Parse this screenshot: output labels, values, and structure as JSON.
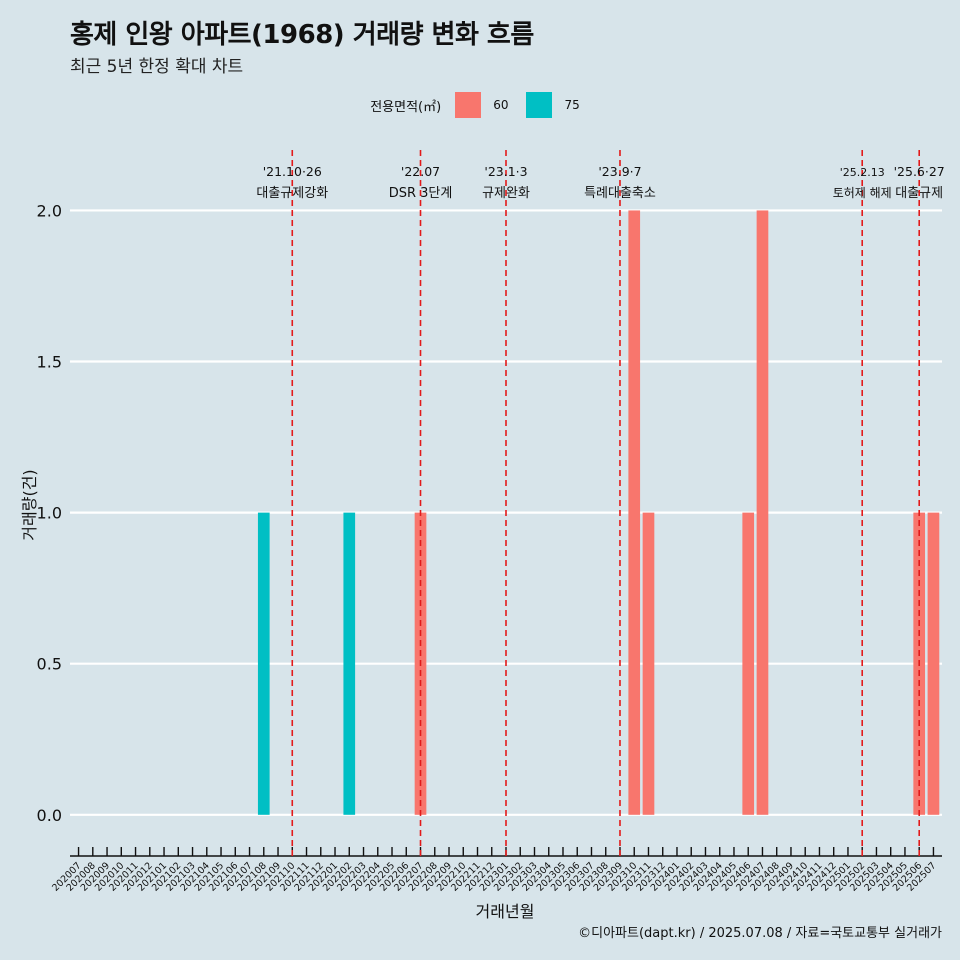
{
  "header": {
    "title": "홍제 인왕 아파트(1968) 거래량 변화 흐름",
    "subtitle": "최근 5년 한정 확대 차트"
  },
  "legend": {
    "title": "전용면적(㎡)",
    "items": [
      {
        "label": "60",
        "color": "#f8766d"
      },
      {
        "label": "75",
        "color": "#00bfc4"
      }
    ]
  },
  "caption": "©디아파트(dapt.kr) / 2025.07.08 / 자료=국토교통부 실거래가",
  "chart_data": {
    "type": "bar",
    "xlabel": "거래년월",
    "ylabel": "거래량(건)",
    "ylim": [
      -0.09,
      2.2
    ],
    "yticks": [
      0.0,
      0.5,
      1.0,
      1.5,
      2.0
    ],
    "ytick_labels": [
      "0.0",
      "0.5",
      "1.0",
      "1.5",
      "2.0"
    ],
    "grid": true,
    "legend_position": "top",
    "categories": [
      "202007",
      "202008",
      "202009",
      "202010",
      "202011",
      "202012",
      "202101",
      "202102",
      "202103",
      "202104",
      "202105",
      "202106",
      "202107",
      "202108",
      "202109",
      "202110",
      "202111",
      "202112",
      "202201",
      "202202",
      "202203",
      "202204",
      "202205",
      "202206",
      "202207",
      "202208",
      "202209",
      "202210",
      "202211",
      "202212",
      "202301",
      "202302",
      "202303",
      "202304",
      "202305",
      "202306",
      "202307",
      "202308",
      "202309",
      "202310",
      "202311",
      "202312",
      "202401",
      "202402",
      "202403",
      "202404",
      "202405",
      "202406",
      "202407",
      "202408",
      "202409",
      "202410",
      "202411",
      "202412",
      "202501",
      "202502",
      "202503",
      "202504",
      "202505",
      "202506",
      "202507"
    ],
    "series": [
      {
        "name": "60",
        "color": "#f8766d",
        "values": [
          0,
          0,
          0,
          0,
          0,
          0,
          0,
          0,
          0,
          0,
          0,
          0,
          0,
          0,
          0,
          0,
          0,
          0,
          0,
          0,
          0,
          0,
          0,
          0,
          1,
          0,
          0,
          0,
          0,
          0,
          0,
          0,
          0,
          0,
          0,
          0,
          0,
          0,
          0,
          2,
          1,
          0,
          0,
          0,
          0,
          0,
          0,
          1,
          2,
          0,
          0,
          0,
          0,
          0,
          0,
          0,
          0,
          0,
          0,
          1,
          1
        ]
      },
      {
        "name": "75",
        "color": "#00bfc4",
        "values": [
          0,
          0,
          0,
          0,
          0,
          0,
          0,
          0,
          0,
          0,
          0,
          0,
          0,
          1,
          0,
          0,
          0,
          0,
          0,
          1,
          0,
          0,
          0,
          0,
          0,
          0,
          0,
          0,
          0,
          0,
          0,
          0,
          0,
          0,
          0,
          0,
          0,
          0,
          0,
          0,
          0,
          0,
          0,
          0,
          0,
          0,
          0,
          0,
          0,
          0,
          0,
          0,
          0,
          0,
          0,
          0,
          0,
          0,
          0,
          0,
          0
        ]
      }
    ],
    "annotations": [
      {
        "x": 15.0,
        "line1": "'21.10·26",
        "line2": "대출규제강화"
      },
      {
        "x": 24.0,
        "line1": "'22.07",
        "line2": "DSR 3단계"
      },
      {
        "x": 30.0,
        "line1": "'23.1·3",
        "line2": "규제완화"
      },
      {
        "x": 38.0,
        "line1": "'23.9·7",
        "line2": "특례대출축소"
      },
      {
        "x": 55.0,
        "line1": "'25.2.13",
        "line2": "토허제 해제"
      },
      {
        "x": 59.0,
        "line1": "'25.6·27",
        "line2": "대출규제"
      }
    ]
  }
}
